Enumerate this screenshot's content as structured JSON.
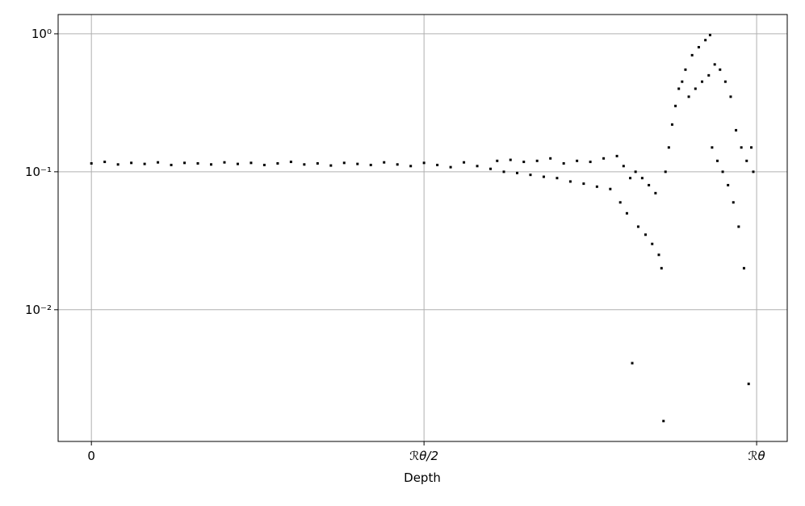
{
  "chart_data": {
    "type": "scatter",
    "x_label": "Depth",
    "xlim": [
      -0.05,
      1.046
    ],
    "xticks": [
      0,
      {
        "value": 0.5,
        "label": "ℛθ/2"
      },
      {
        "value": 1,
        "label": "ℛθ"
      }
    ],
    "ylim": [
      0.00111,
      1.38
    ],
    "log_y": true,
    "yticks": [
      {
        "value": 1,
        "label": "10⁰"
      },
      {
        "value": 0.1,
        "label": "10⁻¹"
      },
      {
        "value": 0.01,
        "label": "10⁻²"
      }
    ],
    "grid": true,
    "series": [
      {
        "color": "#000000",
        "x": [
          0,
          0.02,
          0.04,
          0.06,
          0.08,
          0.1,
          0.12,
          0.14,
          0.16,
          0.18,
          0.2,
          0.22,
          0.24,
          0.26,
          0.28,
          0.3,
          0.32,
          0.34,
          0.36,
          0.38,
          0.4,
          0.42,
          0.44,
          0.46,
          0.48,
          0.5,
          0.52,
          0.54,
          0.56,
          0.58,
          0.6,
          0.61,
          0.62,
          0.63,
          0.64,
          0.65,
          0.66,
          0.67,
          0.68,
          0.69,
          0.7,
          0.71,
          0.72,
          0.73,
          0.74,
          0.75,
          0.76,
          0.77,
          0.78,
          0.79,
          0.795,
          0.8,
          0.805,
          0.81,
          0.813,
          0.818,
          0.822,
          0.828,
          0.833,
          0.838,
          0.843,
          0.848,
          0.853,
          0.857,
          0.86,
          0.863,
          0.868,
          0.873,
          0.878,
          0.883,
          0.888,
          0.893,
          0.898,
          0.903,
          0.908,
          0.913,
          0.918,
          0.923,
          0.928,
          0.93,
          0.933,
          0.937,
          0.941,
          0.945,
          0.949,
          0.953,
          0.957,
          0.961,
          0.965,
          0.969,
          0.973,
          0.977,
          0.981,
          0.985,
          0.988,
          0.992,
          0.995
        ],
        "values": [
          0.115,
          0.118,
          0.113,
          0.116,
          0.114,
          0.117,
          0.112,
          0.116,
          0.115,
          0.113,
          0.117,
          0.114,
          0.116,
          0.112,
          0.115,
          0.118,
          0.113,
          0.115,
          0.111,
          0.116,
          0.114,
          0.112,
          0.117,
          0.113,
          0.11,
          0.116,
          0.112,
          0.108,
          0.117,
          0.11,
          0.105,
          0.12,
          0.1,
          0.122,
          0.098,
          0.118,
          0.095,
          0.12,
          0.092,
          0.125,
          0.09,
          0.115,
          0.085,
          0.12,
          0.082,
          0.118,
          0.078,
          0.125,
          0.075,
          0.13,
          0.06,
          0.11,
          0.05,
          0.09,
          0.0041,
          0.1,
          0.04,
          0.09,
          0.035,
          0.08,
          0.03,
          0.07,
          0.025,
          0.02,
          0.00156,
          0.1,
          0.15,
          0.22,
          0.3,
          0.4,
          0.45,
          0.55,
          0.35,
          0.7,
          0.4,
          0.8,
          0.45,
          0.9,
          0.5,
          0.98,
          0.15,
          0.6,
          0.12,
          0.55,
          0.1,
          0.45,
          0.08,
          0.35,
          0.06,
          0.2,
          0.04,
          0.15,
          0.02,
          0.12,
          0.0029,
          0.15,
          0.1
        ]
      }
    ]
  }
}
